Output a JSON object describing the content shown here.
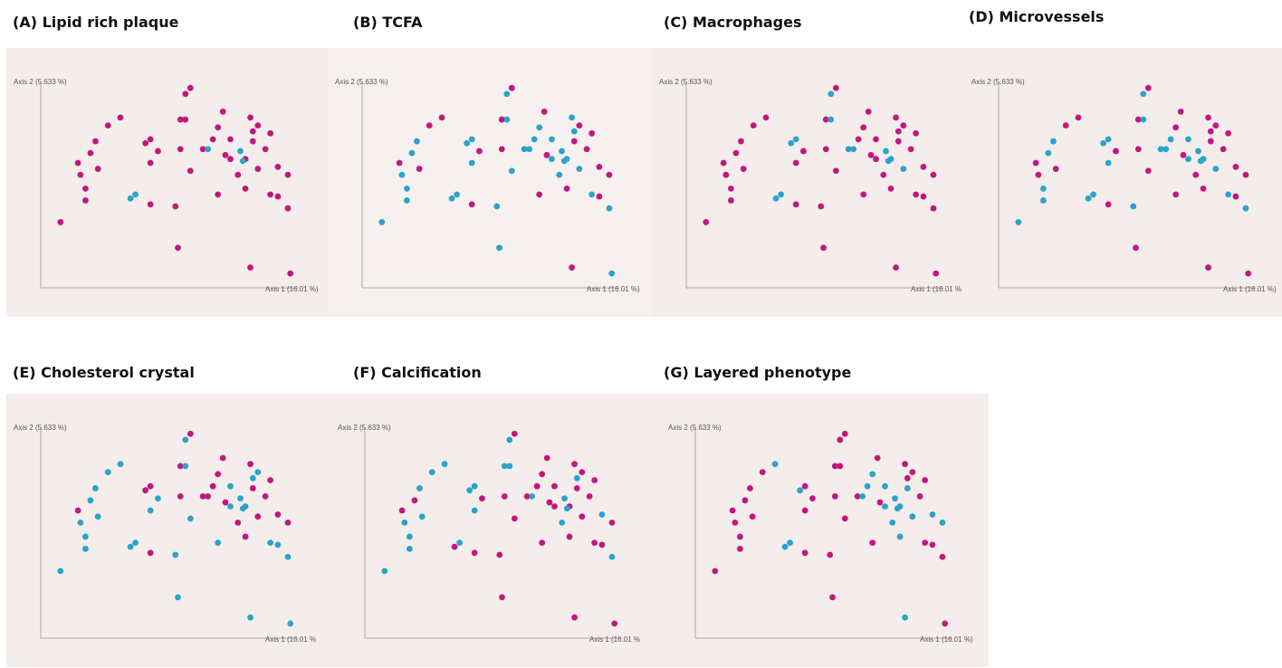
{
  "chart_data": [
    {
      "type": "scatter",
      "title": "(A) Lipid rich plaque",
      "ylabel": "Axis 2 (5.633 %)",
      "xlabel": "Axis 1 (16.01 %)",
      "xlim": [
        0,
        100
      ],
      "ylim": [
        0,
        100
      ],
      "series": [
        {
          "color": "#c2177d",
          "x": [
            5,
            12,
            13,
            15,
            15,
            17,
            19,
            20,
            24,
            29,
            39,
            41,
            41,
            44,
            41,
            51,
            52,
            53,
            53,
            55,
            55,
            57,
            57,
            62,
            66,
            68,
            70,
            68,
            71,
            73,
            73,
            76,
            79,
            79,
            81,
            81,
            82,
            84,
            82,
            84,
            87,
            89,
            89,
            92,
            92,
            96,
            96,
            97
          ],
          "y": [
            31,
            61,
            55,
            48,
            42,
            66,
            72,
            58,
            80,
            84,
            71,
            73,
            61,
            67,
            40,
            39,
            18,
            68,
            83,
            83,
            96,
            99,
            57,
            68,
            73,
            79,
            87,
            45,
            65,
            73,
            63,
            55,
            63,
            48,
            84,
            8,
            77,
            80,
            72,
            58,
            68,
            45,
            76,
            44,
            59,
            55,
            38,
            5
          ]
        },
        {
          "color": "#2ba3cc",
          "x": [
            33,
            35,
            64,
            77,
            78
          ],
          "y": [
            43,
            45,
            68,
            67,
            62
          ]
        }
      ]
    },
    {
      "type": "scatter",
      "title": "(B) TCFA",
      "ylabel": "Axis 2 (5.633 %)",
      "xlabel": "Axis 1 (16.01 %)",
      "xlim": [
        0,
        100
      ],
      "ylim": [
        0,
        100
      ],
      "series": [
        {
          "color": "#c2177d",
          "x": [
            12,
            20,
            24,
            29,
            44,
            41,
            53,
            53,
            57,
            70,
            68,
            71,
            79,
            81,
            84,
            82,
            87,
            89,
            92,
            92,
            96
          ],
          "y": [
            61,
            58,
            80,
            84,
            67,
            40,
            68,
            83,
            99,
            87,
            45,
            65,
            48,
            8,
            80,
            72,
            68,
            76,
            44,
            59,
            55
          ]
        },
        {
          "color": "#2ba3cc",
          "x": [
            5,
            13,
            15,
            15,
            17,
            19,
            33,
            35,
            39,
            41,
            41,
            51,
            52,
            55,
            55,
            57,
            62,
            64,
            66,
            68,
            73,
            73,
            76,
            77,
            78,
            79,
            81,
            82,
            84,
            89,
            96,
            97
          ],
          "y": [
            31,
            55,
            48,
            42,
            66,
            72,
            43,
            45,
            71,
            73,
            61,
            39,
            18,
            83,
            96,
            57,
            68,
            68,
            73,
            79,
            73,
            63,
            55,
            67,
            62,
            63,
            84,
            77,
            58,
            45,
            38,
            5
          ]
        }
      ]
    },
    {
      "type": "scatter",
      "title": "(C) Macrophages",
      "ylabel": "Axis 2 (5.633 %)",
      "xlabel": "Axis 1 (16.01 %",
      "xlim": [
        0,
        100
      ],
      "ylim": [
        0,
        100
      ],
      "series": [
        {
          "color": "#c2177d",
          "x": [
            5,
            12,
            13,
            15,
            15,
            17,
            19,
            20,
            24,
            29,
            41,
            44,
            41,
            51,
            52,
            53,
            53,
            57,
            57,
            66,
            68,
            70,
            68,
            71,
            73,
            73,
            76,
            79,
            81,
            81,
            82,
            84,
            82,
            87,
            89,
            89,
            92,
            92,
            96,
            96,
            97
          ],
          "y": [
            31,
            61,
            55,
            48,
            42,
            66,
            72,
            58,
            80,
            84,
            61,
            67,
            40,
            39,
            18,
            68,
            83,
            99,
            57,
            73,
            79,
            87,
            45,
            65,
            73,
            63,
            55,
            48,
            84,
            8,
            77,
            80,
            72,
            68,
            45,
            76,
            44,
            59,
            55,
            38,
            5
          ]
        },
        {
          "color": "#2ba3cc",
          "x": [
            33,
            35,
            39,
            41,
            55,
            55,
            62,
            64,
            77,
            78,
            79,
            84
          ],
          "y": [
            43,
            45,
            71,
            73,
            83,
            96,
            68,
            68,
            67,
            62,
            63,
            58
          ]
        }
      ]
    },
    {
      "type": "scatter",
      "title": "(D) Microvessels",
      "ylabel": "Axis 2 (5.633 %)",
      "xlabel": "Axis 1 (16.01 %)",
      "xlim": [
        0,
        100
      ],
      "ylim": [
        0,
        100
      ],
      "series": [
        {
          "color": "#c2177d",
          "x": [
            12,
            13,
            20,
            24,
            29,
            44,
            41,
            52,
            53,
            53,
            57,
            57,
            68,
            70,
            68,
            71,
            76,
            79,
            81,
            81,
            82,
            84,
            82,
            87,
            89,
            92,
            92,
            96,
            97
          ],
          "y": [
            61,
            55,
            58,
            80,
            84,
            67,
            40,
            18,
            68,
            83,
            99,
            57,
            79,
            87,
            45,
            65,
            55,
            48,
            84,
            8,
            77,
            80,
            72,
            68,
            76,
            44,
            59,
            55,
            5
          ]
        },
        {
          "color": "#2ba3cc",
          "x": [
            5,
            15,
            15,
            17,
            19,
            33,
            35,
            39,
            41,
            41,
            51,
            55,
            55,
            62,
            64,
            66,
            73,
            73,
            77,
            78,
            79,
            84,
            89,
            96
          ],
          "y": [
            31,
            48,
            42,
            66,
            72,
            43,
            45,
            71,
            73,
            61,
            39,
            83,
            96,
            68,
            68,
            73,
            73,
            63,
            67,
            62,
            63,
            58,
            45,
            38
          ]
        }
      ]
    },
    {
      "type": "scatter",
      "title": "(E) Cholesterol crystal",
      "ylabel": "Axis 2 (5.633 %)",
      "xlabel": "Axis 1 (16.01 %",
      "xlim": [
        0,
        100
      ],
      "ylim": [
        0,
        100
      ],
      "series": [
        {
          "color": "#c2177d",
          "x": [
            12,
            39,
            41,
            41,
            53,
            53,
            57,
            62,
            64,
            66,
            68,
            70,
            71,
            76,
            79,
            81,
            82,
            84,
            87,
            89,
            92,
            96
          ],
          "y": [
            61,
            71,
            73,
            40,
            68,
            83,
            99,
            68,
            68,
            73,
            79,
            87,
            65,
            55,
            48,
            84,
            72,
            58,
            68,
            76,
            59,
            55
          ]
        },
        {
          "color": "#2ba3cc",
          "x": [
            5,
            13,
            15,
            15,
            17,
            19,
            20,
            24,
            29,
            33,
            35,
            41,
            44,
            51,
            52,
            55,
            55,
            57,
            68,
            73,
            73,
            77,
            78,
            79,
            81,
            82,
            84,
            89,
            92,
            96,
            97
          ],
          "y": [
            31,
            55,
            48,
            42,
            66,
            72,
            58,
            80,
            84,
            43,
            45,
            61,
            67,
            39,
            18,
            83,
            96,
            57,
            45,
            73,
            63,
            67,
            62,
            63,
            8,
            77,
            80,
            45,
            44,
            38,
            5
          ]
        }
      ]
    },
    {
      "type": "scatter",
      "title": "(F) Calcification",
      "ylabel": "Axis 2 (5.633 %)",
      "xlabel": "Axis 1 (16.01 %",
      "xlim": [
        0,
        100
      ],
      "ylim": [
        0,
        100
      ],
      "series": [
        {
          "color": "#c2177d",
          "x": [
            12,
            17,
            33,
            44,
            41,
            51,
            52,
            53,
            57,
            57,
            62,
            66,
            68,
            70,
            68,
            71,
            73,
            73,
            79,
            79,
            81,
            81,
            84,
            82,
            84,
            87,
            89,
            89,
            92,
            96,
            97
          ],
          "y": [
            61,
            66,
            43,
            67,
            40,
            39,
            18,
            68,
            99,
            57,
            68,
            73,
            79,
            87,
            45,
            65,
            73,
            63,
            63,
            48,
            84,
            8,
            80,
            72,
            58,
            68,
            45,
            76,
            44,
            55,
            5
          ]
        },
        {
          "color": "#2ba3cc",
          "x": [
            5,
            13,
            15,
            15,
            19,
            20,
            24,
            29,
            35,
            39,
            41,
            41,
            53,
            55,
            55,
            64,
            76,
            77,
            78,
            82,
            92,
            96
          ],
          "y": [
            31,
            55,
            48,
            42,
            72,
            58,
            80,
            84,
            45,
            71,
            73,
            61,
            83,
            83,
            96,
            68,
            55,
            67,
            62,
            77,
            59,
            38
          ]
        }
      ]
    },
    {
      "type": "scatter",
      "title": "(G) Layered phenotype",
      "ylabel": "Axis 2 (5.633 %)",
      "xlabel": "Axis 1 (16.01 %)",
      "xlim": [
        0,
        100
      ],
      "ylim": [
        0,
        100
      ],
      "series": [
        {
          "color": "#c2177d",
          "x": [
            5,
            12,
            13,
            15,
            15,
            17,
            19,
            20,
            24,
            41,
            41,
            44,
            41,
            51,
            52,
            53,
            53,
            55,
            55,
            57,
            57,
            62,
            70,
            68,
            71,
            81,
            82,
            84,
            87,
            89,
            89,
            92,
            96,
            97
          ],
          "y": [
            31,
            61,
            55,
            48,
            42,
            66,
            72,
            58,
            80,
            73,
            61,
            67,
            40,
            39,
            18,
            68,
            83,
            83,
            96,
            99,
            57,
            68,
            87,
            45,
            65,
            84,
            77,
            80,
            68,
            45,
            76,
            44,
            38,
            5
          ]
        },
        {
          "color": "#2ba3cc",
          "x": [
            29,
            33,
            35,
            39,
            64,
            66,
            68,
            73,
            73,
            76,
            77,
            78,
            79,
            79,
            81,
            82,
            84,
            92,
            96
          ],
          "y": [
            84,
            43,
            45,
            71,
            68,
            73,
            79,
            73,
            63,
            55,
            67,
            62,
            63,
            48,
            8,
            72,
            58,
            59,
            55
          ]
        }
      ]
    }
  ]
}
